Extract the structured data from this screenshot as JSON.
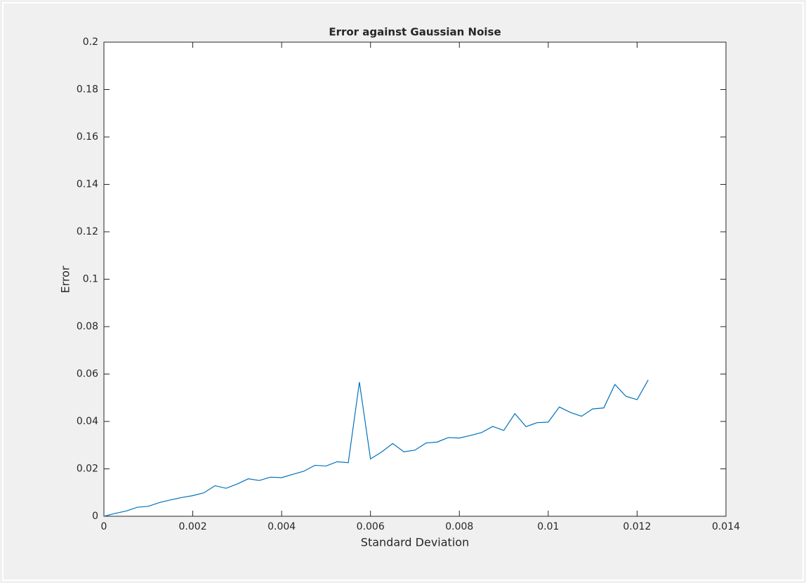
{
  "chart_data": {
    "type": "line",
    "title": "Error against Gaussian Noise",
    "x_label": "Standard Deviation",
    "y_label": "Error",
    "x": [
      0,
      0.00025,
      0.0005,
      0.00075,
      0.001,
      0.00125,
      0.0015,
      0.00175,
      0.002,
      0.00225,
      0.0025,
      0.00275,
      0.003,
      0.00325,
      0.0035,
      0.00375,
      0.004,
      0.00425,
      0.0045,
      0.00475,
      0.005,
      0.00525,
      0.0055,
      0.00575,
      0.006,
      0.00625,
      0.0065,
      0.00675,
      0.007,
      0.00725,
      0.0075,
      0.00775,
      0.008,
      0.00825,
      0.0085,
      0.00875,
      0.009,
      0.00925,
      0.0095,
      0.00975,
      0.01,
      0.01025,
      0.0105,
      0.01075,
      0.011,
      0.01125,
      0.0115,
      0.01175,
      0.012,
      0.01225
    ],
    "series": [
      {
        "color": "#0072bd",
        "values": [
          0,
          0.0012,
          0.0022,
          0.0038,
          0.0042,
          0.0058,
          0.0069,
          0.0079,
          0.0087,
          0.0099,
          0.0129,
          0.0118,
          0.0136,
          0.0158,
          0.0151,
          0.0165,
          0.0163,
          0.0177,
          0.019,
          0.0215,
          0.0212,
          0.023,
          0.0226,
          0.0566,
          0.0242,
          0.0271,
          0.0307,
          0.0272,
          0.0279,
          0.0309,
          0.0313,
          0.0332,
          0.033,
          0.0341,
          0.0353,
          0.0379,
          0.0362,
          0.0433,
          0.0378,
          0.0395,
          0.0397,
          0.0461,
          0.0438,
          0.0422,
          0.0453,
          0.0457,
          0.0556,
          0.0506,
          0.0492,
          0.0575
        ]
      }
    ],
    "xlim": [
      0,
      0.014
    ],
    "xticks": [
      0,
      0.002,
      0.004,
      0.006,
      0.008,
      0.01,
      0.012,
      0.014
    ],
    "ylim": [
      0,
      0.2
    ],
    "yticks": [
      0,
      0.02,
      0.04,
      0.06,
      0.08,
      0.1,
      0.12,
      0.14,
      0.16,
      0.18,
      0.2
    ]
  }
}
